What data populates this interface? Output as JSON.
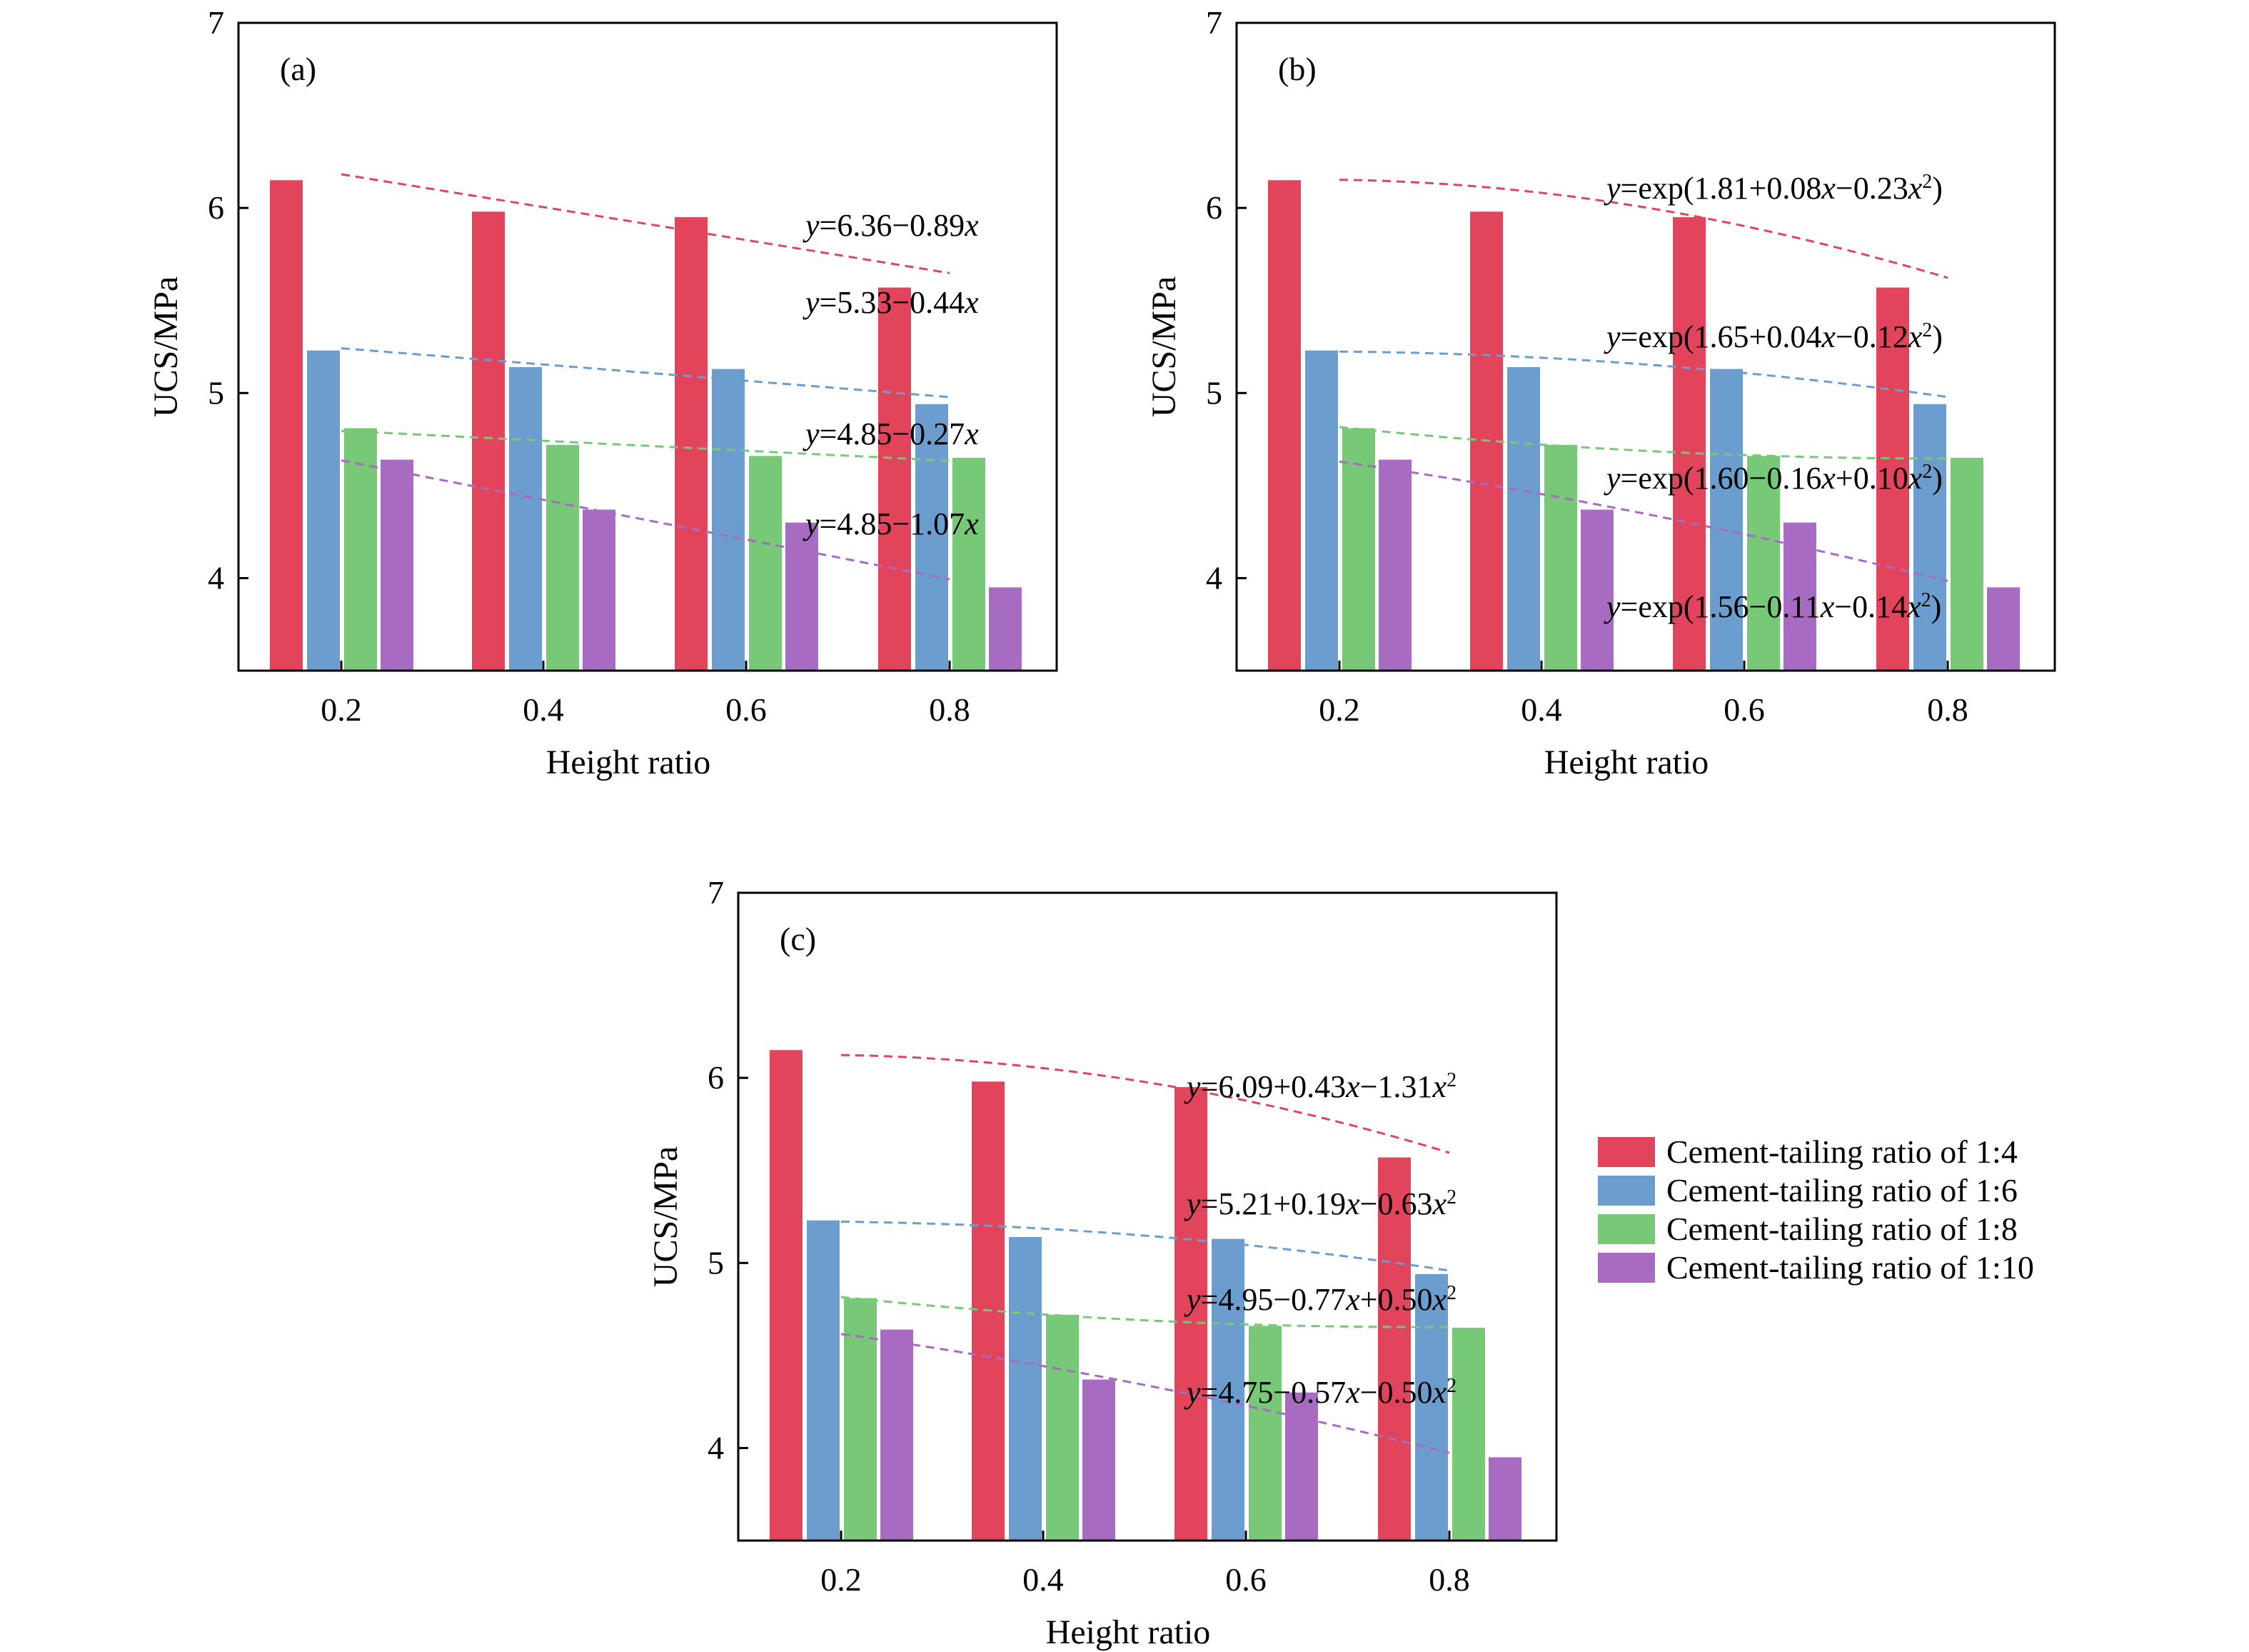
{
  "colors": {
    "series": [
      "#E2445C",
      "#6B9ECE",
      "#77C877",
      "#A86BC2"
    ],
    "axes": "#000000",
    "background": "#ffffff"
  },
  "chart_data": [
    {
      "type": "bar",
      "panel_label": "(a)",
      "xlabel": "Height ratio",
      "ylabel": "UCS/MPa",
      "categories": [
        "0.2",
        "0.4",
        "0.6",
        "0.8"
      ],
      "ylim": [
        3.5,
        7
      ],
      "yticks": [
        4,
        5,
        6,
        7
      ],
      "grid": false,
      "series": [
        {
          "name": "Cement-tailing ratio of 1:4",
          "values": [
            6.15,
            5.98,
            5.95,
            5.57
          ]
        },
        {
          "name": "Cement-tailing ratio of 1:6",
          "values": [
            5.23,
            5.14,
            5.13,
            4.94
          ]
        },
        {
          "name": "Cement-tailing ratio of 1:8",
          "values": [
            4.81,
            4.72,
            4.66,
            4.65
          ]
        },
        {
          "name": "Cement-tailing ratio of 1:10",
          "values": [
            4.64,
            4.37,
            4.3,
            3.95
          ]
        }
      ],
      "fits": [
        {
          "model": "linear",
          "coefficients": [
            6.36,
            -0.89
          ],
          "equation": [
            "y",
            "=6.36−0.89",
            "x"
          ]
        },
        {
          "model": "linear",
          "coefficients": [
            5.33,
            -0.44
          ],
          "equation": [
            "y",
            "=5.33−0.44",
            "x"
          ]
        },
        {
          "model": "linear",
          "coefficients": [
            4.85,
            -0.27
          ],
          "equation": [
            "y",
            "=4.85−0.27",
            "x"
          ]
        },
        {
          "model": "linear",
          "coefficients": [
            4.85,
            -1.07
          ],
          "equation": [
            "y",
            "=4.85−1.07",
            "x"
          ]
        }
      ]
    },
    {
      "type": "bar",
      "panel_label": "(b)",
      "xlabel": "Height ratio",
      "ylabel": "UCS/MPa",
      "categories": [
        "0.2",
        "0.4",
        "0.6",
        "0.8"
      ],
      "ylim": [
        3.5,
        7
      ],
      "yticks": [
        4,
        5,
        6,
        7
      ],
      "grid": false,
      "series": [
        {
          "name": "Cement-tailing ratio of 1:4",
          "values": [
            6.15,
            5.98,
            5.95,
            5.57
          ]
        },
        {
          "name": "Cement-tailing ratio of 1:6",
          "values": [
            5.23,
            5.14,
            5.13,
            4.94
          ]
        },
        {
          "name": "Cement-tailing ratio of 1:8",
          "values": [
            4.81,
            4.72,
            4.66,
            4.65
          ]
        },
        {
          "name": "Cement-tailing ratio of 1:10",
          "values": [
            4.64,
            4.37,
            4.3,
            3.95
          ]
        }
      ],
      "fits": [
        {
          "model": "exp-quadratic",
          "coefficients": [
            1.81,
            0.08,
            -0.23
          ],
          "equation": [
            "y",
            "=exp(1.81+0.08",
            "x",
            "−0.23",
            "x",
            "2",
            ")"
          ]
        },
        {
          "model": "exp-quadratic",
          "coefficients": [
            1.65,
            0.04,
            -0.12
          ],
          "equation": [
            "y",
            "=exp(1.65+0.04",
            "x",
            "−0.12",
            "x",
            "2",
            ")"
          ]
        },
        {
          "model": "exp-quadratic",
          "coefficients": [
            1.6,
            -0.16,
            0.1
          ],
          "equation": [
            "y",
            "=exp(1.60−0.16",
            "x",
            "+0.10",
            "x",
            "2",
            ")"
          ]
        },
        {
          "model": "exp-quadratic",
          "coefficients": [
            1.56,
            -0.11,
            -0.14
          ],
          "equation": [
            "y",
            "=exp(1.56−0.11",
            "x",
            "−0.14",
            "x",
            "2",
            ")"
          ]
        }
      ]
    },
    {
      "type": "bar",
      "panel_label": "(c)",
      "xlabel": "Height ratio",
      "ylabel": "UCS/MPa",
      "categories": [
        "0.2",
        "0.4",
        "0.6",
        "0.8"
      ],
      "ylim": [
        3.5,
        7
      ],
      "yticks": [
        4,
        5,
        6,
        7
      ],
      "grid": false,
      "legend": "right, outside",
      "series": [
        {
          "name": "Cement-tailing ratio of 1:4",
          "values": [
            6.15,
            5.98,
            5.95,
            5.57
          ]
        },
        {
          "name": "Cement-tailing ratio of 1:6",
          "values": [
            5.23,
            5.14,
            5.13,
            4.94
          ]
        },
        {
          "name": "Cement-tailing ratio of 1:8",
          "values": [
            4.81,
            4.72,
            4.66,
            4.65
          ]
        },
        {
          "name": "Cement-tailing ratio of 1:10",
          "values": [
            4.64,
            4.37,
            4.3,
            3.95
          ]
        }
      ],
      "fits": [
        {
          "model": "quadratic",
          "coefficients": [
            6.09,
            0.43,
            -1.31
          ],
          "equation": [
            "y",
            "=6.09+0.43",
            "x",
            "−1.31",
            "x",
            "2"
          ]
        },
        {
          "model": "quadratic",
          "coefficients": [
            5.21,
            0.19,
            -0.63
          ],
          "equation": [
            "y",
            "=5.21+0.19",
            "x",
            "−0.63",
            "x",
            "2"
          ]
        },
        {
          "model": "quadratic",
          "coefficients": [
            4.95,
            -0.77,
            0.5
          ],
          "equation": [
            "y",
            "=4.95−0.77",
            "x",
            "+0.50",
            "x",
            "2"
          ]
        },
        {
          "model": "quadratic",
          "coefficients": [
            4.75,
            -0.57,
            -0.5
          ],
          "equation": [
            "y",
            "=4.75−0.57",
            "x",
            "−0.50",
            "x",
            "2"
          ]
        }
      ]
    }
  ]
}
